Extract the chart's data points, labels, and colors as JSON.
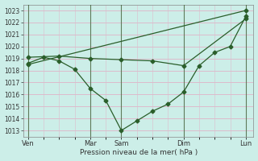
{
  "title": "",
  "xlabel": "Pression niveau de la mer( hPa )",
  "ylabel": "",
  "bg_color": "#cceee8",
  "grid_color": "#ddbbcc",
  "line_color": "#2a5e2a",
  "ylim": [
    1012.5,
    1023.5
  ],
  "yticks": [
    1013,
    1014,
    1015,
    1016,
    1017,
    1018,
    1019,
    1020,
    1021,
    1022,
    1023
  ],
  "xtick_labels": [
    "Ven",
    "Mar",
    "Sam",
    "Dim",
    "Lun"
  ],
  "xtick_positions": [
    0,
    4,
    6,
    10,
    14
  ],
  "vline_positions": [
    0,
    4,
    6,
    10,
    14
  ],
  "line1_x": [
    0,
    14
  ],
  "line1_y": [
    1018.5,
    1023.0
  ],
  "line2_x": [
    0,
    2,
    4,
    6,
    8,
    10,
    14
  ],
  "line2_y": [
    1019.1,
    1019.2,
    1019.0,
    1018.9,
    1018.8,
    1018.4,
    1022.3
  ],
  "line3_x": [
    0,
    1,
    2,
    3,
    4,
    5,
    6,
    7,
    8,
    9,
    10,
    11,
    12,
    13,
    14
  ],
  "line3_y": [
    1018.6,
    1019.1,
    1018.8,
    1018.1,
    1016.5,
    1015.5,
    1013.0,
    1013.8,
    1014.6,
    1015.2,
    1016.2,
    1018.4,
    1019.5,
    1020.0,
    1022.5
  ],
  "figsize": [
    3.2,
    2.0
  ],
  "dpi": 100
}
